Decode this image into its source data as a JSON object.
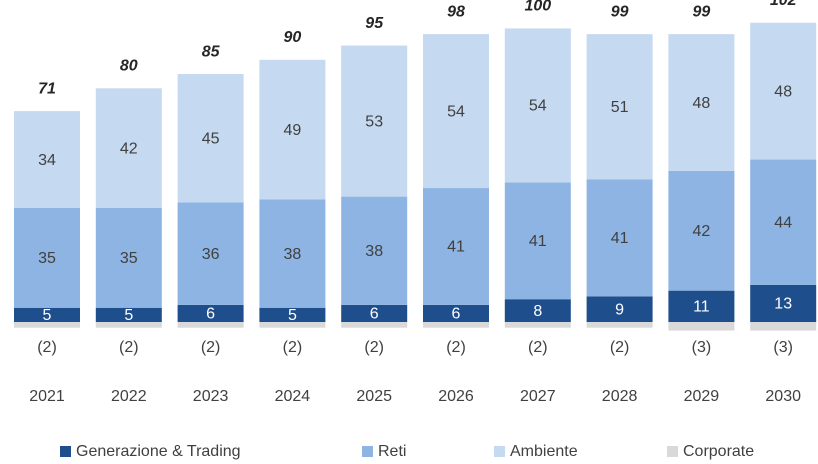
{
  "chart_data": {
    "type": "bar",
    "stacked": true,
    "categories": [
      "2021",
      "2022",
      "2023",
      "2024",
      "2025",
      "2026",
      "2027",
      "2028",
      "2029",
      "2030"
    ],
    "series": [
      {
        "name": "Generazione & Trading",
        "color": "#1f4e8c",
        "values": [
          5,
          5,
          6,
          5,
          6,
          6,
          8,
          9,
          11,
          13
        ]
      },
      {
        "name": "Reti",
        "color": "#8db4e2",
        "values": [
          35,
          35,
          36,
          38,
          38,
          41,
          41,
          41,
          42,
          44
        ]
      },
      {
        "name": "Ambiente",
        "color": "#c5d9f1",
        "values": [
          34,
          42,
          45,
          49,
          53,
          54,
          54,
          51,
          48,
          48
        ]
      },
      {
        "name": "Corporate",
        "color": "#d9d9d9",
        "values": [
          -2,
          -2,
          -2,
          -2,
          -2,
          -2,
          -2,
          -2,
          -3,
          -3
        ],
        "value_labels": [
          "(2)",
          "(2)",
          "(2)",
          "(2)",
          "(2)",
          "(2)",
          "(2)",
          "(2)",
          "(3)",
          "(3)"
        ]
      }
    ],
    "totals": [
      71,
      80,
      85,
      90,
      95,
      98,
      100,
      99,
      99,
      102
    ],
    "legend": "bottom"
  }
}
